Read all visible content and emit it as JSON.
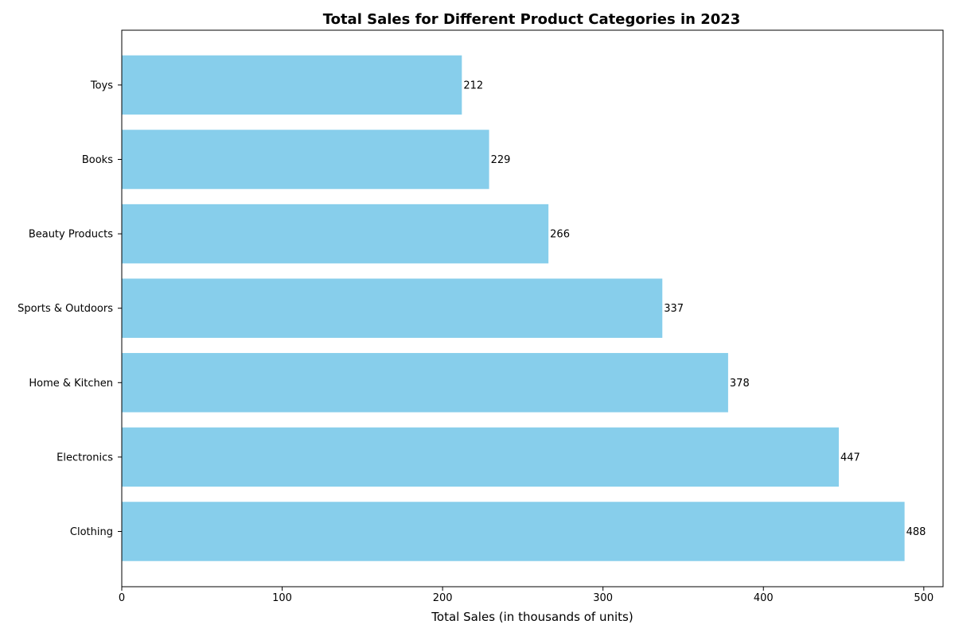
{
  "chart_data": {
    "type": "bar",
    "orientation": "horizontal",
    "title": "Total Sales for Different Product Categories in 2023",
    "xlabel": "Total Sales (in thousands of units)",
    "ylabel": "",
    "categories": [
      "Clothing",
      "Electronics",
      "Home & Kitchen",
      "Sports & Outdoors",
      "Beauty Products",
      "Books",
      "Toys"
    ],
    "values": [
      488,
      447,
      378,
      337,
      266,
      229,
      212
    ],
    "xlim": [
      0,
      512
    ],
    "xticks": [
      0,
      100,
      200,
      300,
      400,
      500
    ],
    "bar_color": "#87CEEB",
    "grid": false,
    "legend": "none"
  }
}
